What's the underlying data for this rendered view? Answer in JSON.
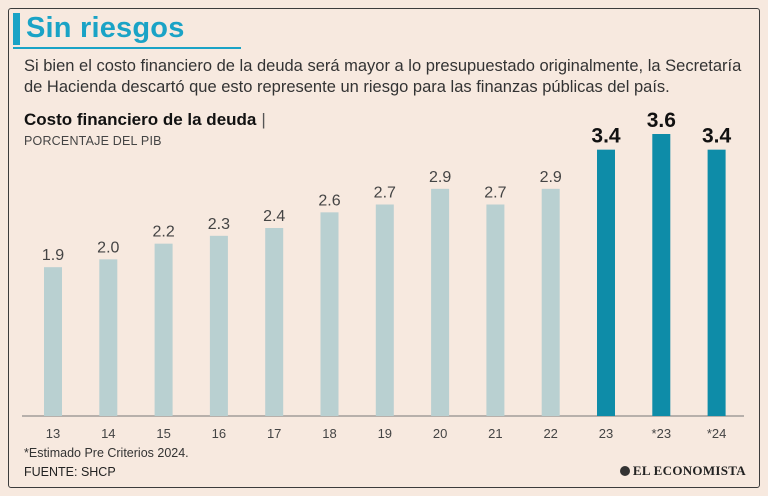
{
  "header": {
    "title": "Sin riesgos",
    "subtitle": "Si bien el costo financiero de la deuda será mayor a lo presupuestado originalmente, la Secretaría de Hacienda descartó que esto represente un riesgo para las finanzas públicas del país."
  },
  "chart_data": {
    "type": "bar",
    "title": "Costo financiero de la deuda",
    "title_separator": "|",
    "ylabel": "PORCENTAJE DEL PIB",
    "xlabel": "",
    "categories": [
      "13",
      "14",
      "15",
      "16",
      "17",
      "18",
      "19",
      "20",
      "21",
      "22",
      "23",
      "*23",
      "*24"
    ],
    "values": [
      1.9,
      2.0,
      2.2,
      2.3,
      2.4,
      2.6,
      2.7,
      2.9,
      2.7,
      2.9,
      3.4,
      3.6,
      3.4
    ],
    "value_labels": [
      "1.9",
      "2.0",
      "2.2",
      "2.3",
      "2.4",
      "2.6",
      "2.7",
      "2.9",
      "2.7",
      "2.9",
      "3.4",
      "3.6",
      "3.4"
    ],
    "highlighted": [
      false,
      false,
      false,
      false,
      false,
      false,
      false,
      false,
      false,
      false,
      true,
      true,
      true
    ],
    "ylim": [
      0,
      3.6
    ],
    "grid": false,
    "colors": {
      "base": "#b9d0d1",
      "highlight": "#0e8ca8",
      "axis": "#777777"
    }
  },
  "footer": {
    "note": "*Estimado Pre Criterios 2024.",
    "source": "FUENTE: SHCP",
    "brand": "EL ECONOMISTA"
  }
}
